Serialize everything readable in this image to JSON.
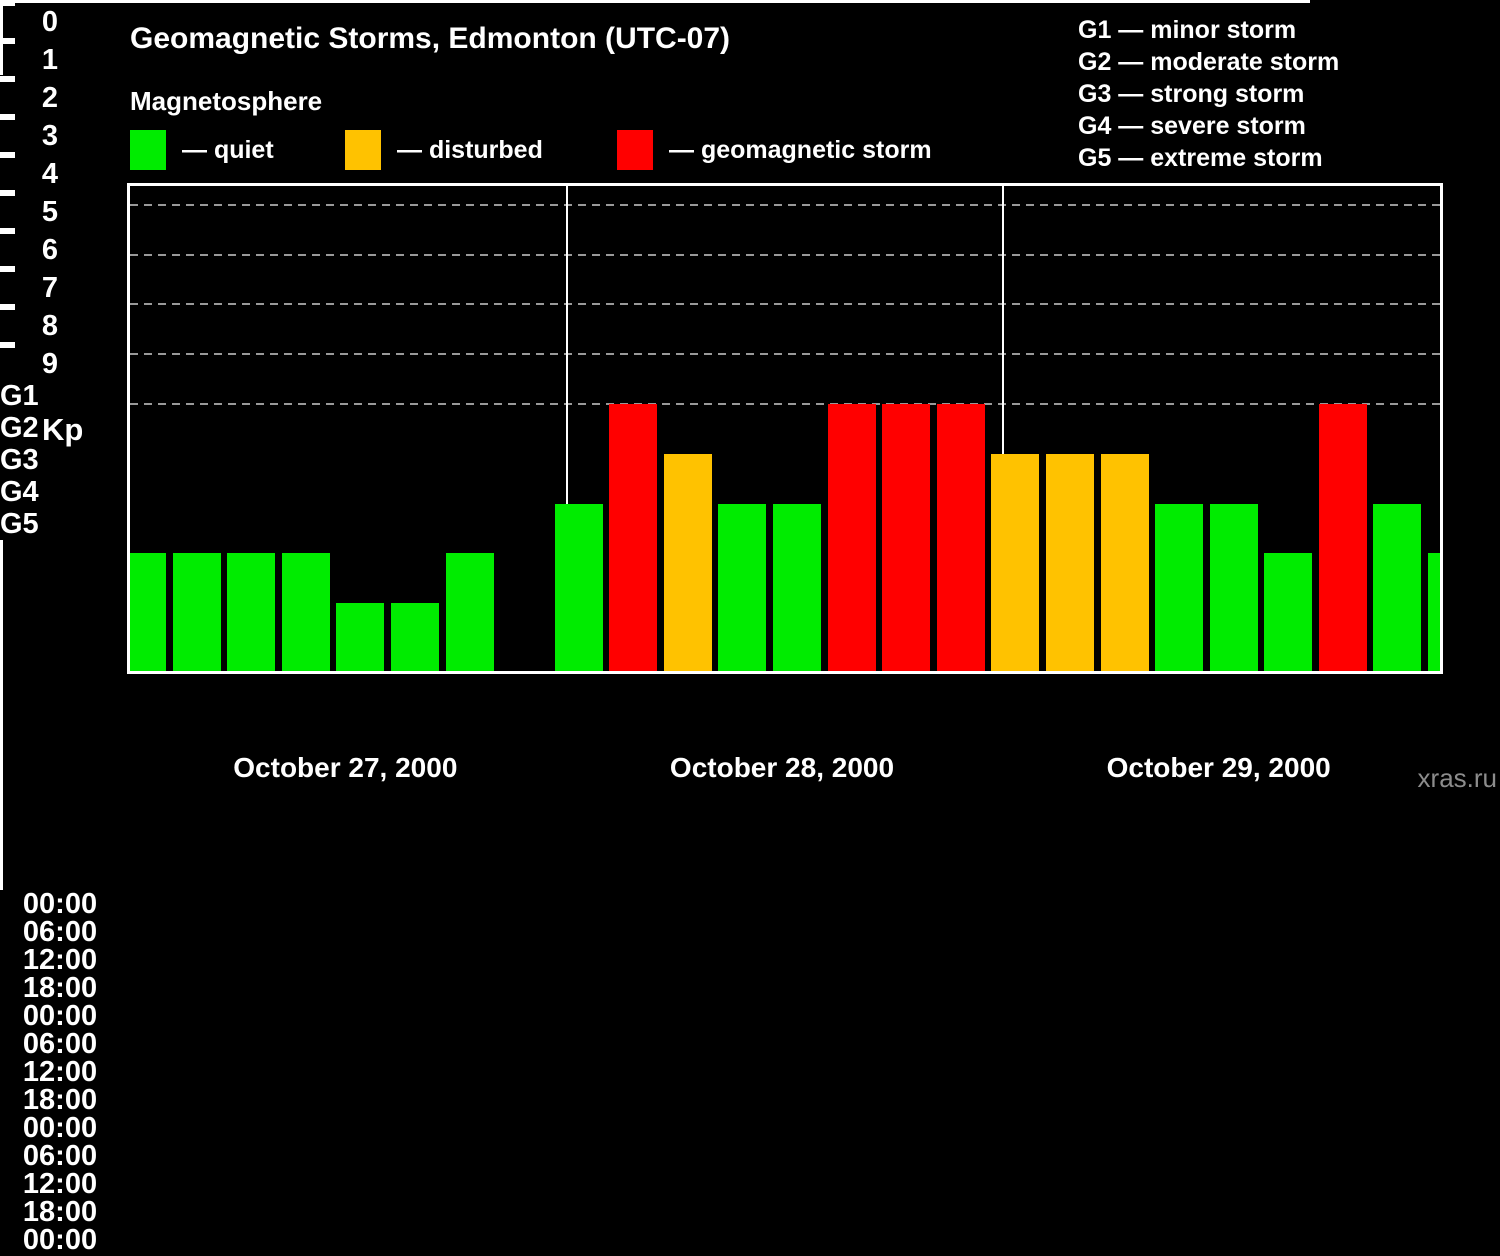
{
  "page": {
    "title": "Geomagnetic Storms, Edmonton (UTC-07)",
    "subtitle": "Magnetosphere",
    "watermark": "xras.ru"
  },
  "legend": {
    "items": [
      {
        "label": "— quiet",
        "color": "#00ec00"
      },
      {
        "label": "— disturbed",
        "color": "#ffc200"
      },
      {
        "label": "— geomagnetic storm",
        "color": "#ff0000"
      }
    ]
  },
  "g_legend": [
    "G1 — minor storm",
    "G2 — moderate storm",
    "G3 — strong storm",
    "G4 — severe storm",
    "G5 — extreme storm"
  ],
  "chart_data": {
    "type": "bar",
    "title": "Geomagnetic Storms, Edmonton (UTC-07)",
    "subtitle": "Magnetosphere",
    "ylabel": "Kp",
    "ylim": [
      0,
      9
    ],
    "y_ticks": [
      0,
      1,
      2,
      3,
      4,
      5,
      6,
      7,
      8,
      9
    ],
    "gridlines_at_kp": [
      5,
      6,
      7,
      8,
      9
    ],
    "grid_style": "dashed",
    "right_axis_ticks": [
      {
        "kp": 5,
        "label": "G1"
      },
      {
        "kp": 6,
        "label": "G2"
      },
      {
        "kp": 7,
        "label": "G3"
      },
      {
        "kp": 8,
        "label": "G4"
      },
      {
        "kp": 9,
        "label": "G5"
      }
    ],
    "bar_interval_hours": 3,
    "x_minor_tick_hours": 3,
    "x_label_every_hours": 6,
    "x_labels": [
      "00:00",
      "06:00",
      "12:00",
      "18:00",
      "00:00",
      "06:00",
      "12:00",
      "18:00",
      "00:00",
      "06:00",
      "12:00",
      "18:00",
      "00:00"
    ],
    "days": [
      {
        "date": "October 27, 2000",
        "kp": [
          2,
          2,
          2,
          2,
          1,
          1,
          2,
          null
        ]
      },
      {
        "date": "October 28, 2000",
        "kp": [
          3,
          5,
          4,
          3,
          3,
          5,
          5,
          5
        ]
      },
      {
        "date": "October 29, 2000",
        "kp": [
          4,
          4,
          4,
          3,
          3,
          2,
          5,
          3
        ]
      }
    ],
    "partial_next_interval_kp": 2,
    "colors": {
      "quiet": "#00ec00",
      "disturbed": "#ffc200",
      "storm": "#ff0000",
      "axis": "#ffffff",
      "grid": "#999999",
      "background": "#000000"
    },
    "thresholds": {
      "disturbed_min_kp": 4,
      "storm_min_kp": 5
    }
  }
}
